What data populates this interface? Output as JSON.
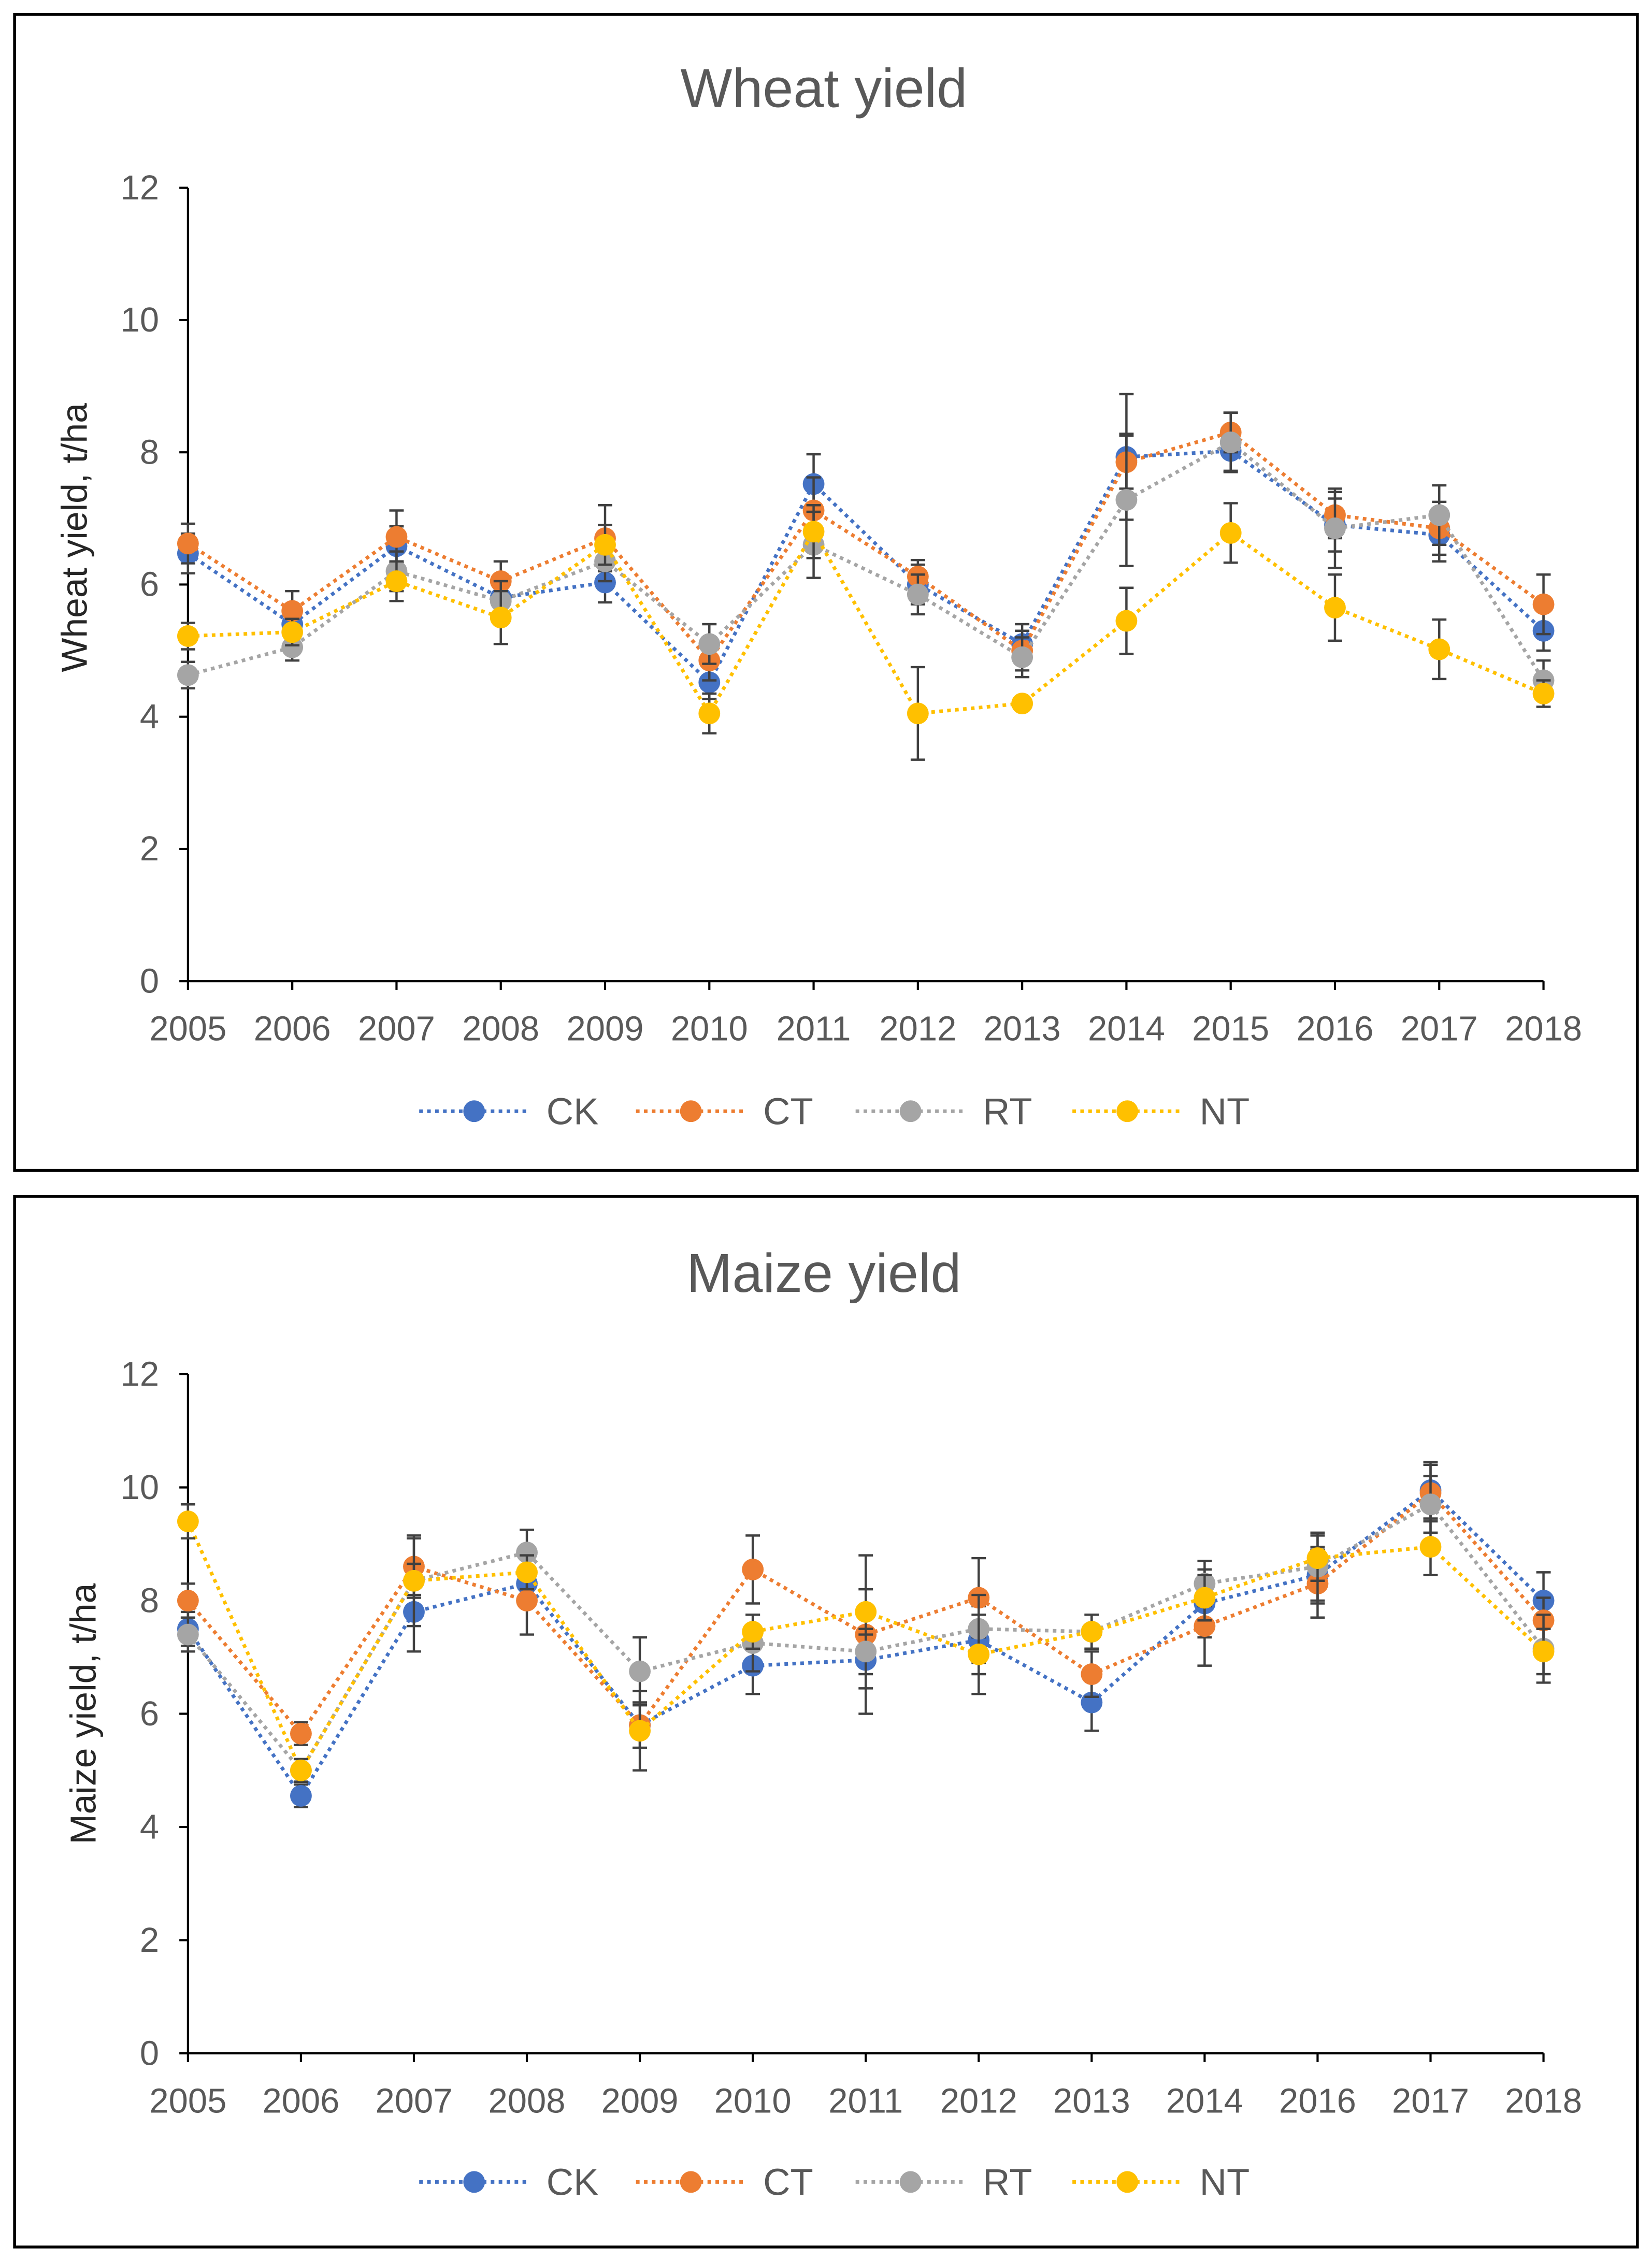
{
  "colors": {
    "CK": "#4472C4",
    "CT": "#ED7D31",
    "RT": "#A5A5A5",
    "NT": "#FFC000",
    "errbar": "#404040"
  },
  "chart_data": [
    {
      "type": "line",
      "title": "Wheat yield",
      "xlabel": "",
      "ylabel": "Wheat yield, t/ha",
      "ylim": [
        0,
        12
      ],
      "yticks": [
        "0",
        "2",
        "4",
        "6",
        "8",
        "10",
        "12"
      ],
      "categories": [
        "2005",
        "2006",
        "2007",
        "2008",
        "2009",
        "2010",
        "2011",
        "2012",
        "2013",
        "2014",
        "2015",
        "2016",
        "2017",
        "2018"
      ],
      "legend_position": "bottom",
      "series": [
        {
          "name": "CK",
          "values": [
            6.47,
            5.4,
            6.58,
            5.8,
            6.03,
            4.52,
            7.52,
            6.0,
            5.1,
            7.93,
            8.02,
            6.9,
            6.75,
            5.3
          ],
          "errors": [
            0.3,
            0.3,
            0.3,
            0.3,
            0.3,
            0.25,
            0.45,
            0.3,
            0.3,
            0.95,
            0.3,
            0.4,
            0.4,
            0.3
          ]
        },
        {
          "name": "CT",
          "values": [
            6.62,
            5.6,
            6.72,
            6.05,
            6.7,
            4.85,
            7.12,
            6.12,
            5.0,
            7.85,
            8.3,
            7.05,
            6.85,
            5.7
          ],
          "errors": [
            0.3,
            0.3,
            0.4,
            0.3,
            0.5,
            0.3,
            0.5,
            0.25,
            0.3,
            0.4,
            0.3,
            0.35,
            0.4,
            0.45
          ]
        },
        {
          "name": "RT",
          "values": [
            4.63,
            5.05,
            6.2,
            5.75,
            6.35,
            5.1,
            6.6,
            5.85,
            4.9,
            7.28,
            8.15,
            6.85,
            7.05,
            4.55
          ],
          "errors": [
            0.2,
            0.2,
            0.3,
            0.3,
            0.3,
            0.3,
            0.5,
            0.3,
            0.3,
            1.0,
            0.45,
            0.6,
            0.45,
            0.3
          ]
        },
        {
          "name": "NT",
          "values": [
            5.22,
            5.28,
            6.05,
            5.5,
            6.6,
            4.05,
            6.8,
            4.05,
            4.2,
            5.45,
            6.78,
            5.65,
            5.02,
            4.35
          ],
          "errors": [
            0.2,
            0.2,
            0.3,
            0.4,
            0.3,
            0.3,
            0.4,
            0.7,
            0.1,
            0.5,
            0.45,
            0.5,
            0.45,
            0.2
          ]
        }
      ]
    },
    {
      "type": "line",
      "title": "Maize yield",
      "xlabel": "",
      "ylabel": "Maize yield, t/ha",
      "ylim": [
        0,
        12
      ],
      "yticks": [
        "0",
        "2",
        "4",
        "6",
        "8",
        "10",
        "12"
      ],
      "categories": [
        "2005",
        "2006",
        "2007",
        "2008",
        "2009",
        "2010",
        "2011",
        "2012",
        "2013",
        "2014",
        "2016",
        "2017",
        "2018"
      ],
      "legend_position": "bottom",
      "series": [
        {
          "name": "CK",
          "values": [
            7.5,
            4.55,
            7.8,
            8.3,
            5.8,
            6.85,
            6.95,
            7.3,
            6.2,
            7.95,
            8.45,
            9.95,
            8.0
          ],
          "errors": [
            0.3,
            0.2,
            0.7,
            0.3,
            0.4,
            0.5,
            0.5,
            0.6,
            0.5,
            0.6,
            0.5,
            0.5,
            0.5
          ]
        },
        {
          "name": "CT",
          "values": [
            8.0,
            5.65,
            8.6,
            8.0,
            5.8,
            8.55,
            7.4,
            8.05,
            6.7,
            7.55,
            8.3,
            9.9,
            7.65
          ],
          "errors": [
            0.3,
            0.2,
            0.5,
            0.6,
            0.4,
            0.6,
            1.4,
            0.7,
            0.4,
            0.7,
            0.6,
            0.5,
            0.4
          ]
        },
        {
          "name": "RT",
          "values": [
            7.4,
            5.0,
            8.35,
            8.85,
            6.75,
            7.25,
            7.1,
            7.5,
            7.45,
            8.3,
            8.6,
            9.7,
            7.15
          ],
          "errors": [
            0.3,
            0.2,
            0.8,
            0.4,
            0.6,
            0.5,
            0.4,
            0.6,
            0.3,
            0.4,
            0.6,
            0.5,
            0.6
          ]
        },
        {
          "name": "NT",
          "values": [
            9.4,
            5.0,
            8.35,
            8.5,
            5.7,
            7.45,
            7.8,
            7.05,
            7.45,
            8.05,
            8.75,
            8.95,
            7.1
          ],
          "errors": [
            0.3,
            0.2,
            0.3,
            0.3,
            0.7,
            0.3,
            0.4,
            0.7,
            0.3,
            0.4,
            0.4,
            0.5,
            0.4
          ]
        }
      ]
    }
  ]
}
